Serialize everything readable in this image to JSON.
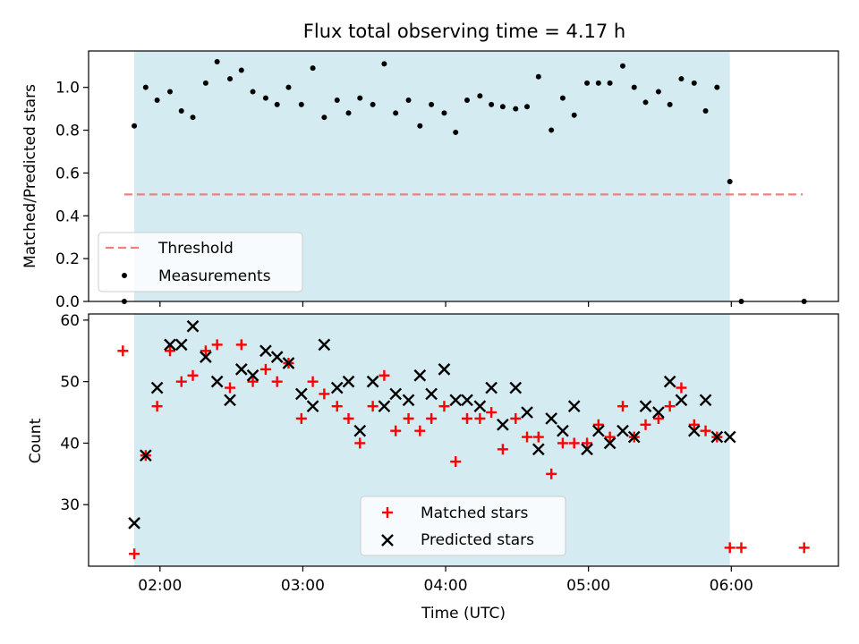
{
  "colors": {
    "shade": "#add8e6",
    "threshold": "#f08080",
    "measurement": "#000000",
    "matched": "#ff0000",
    "predicted": "#000000"
  },
  "chart_data": [
    {
      "type": "scatter",
      "title": "Flux total observing time = 4.17 h",
      "xlabel": "",
      "ylabel": "Matched/Predicted stars",
      "xlim": [
        1.5,
        6.75
      ],
      "ylim": [
        0,
        1.17
      ],
      "x_ticks": [
        2,
        3,
        4,
        5,
        6
      ],
      "y_ticks": [
        0.0,
        0.2,
        0.4,
        0.6,
        0.8,
        1.0
      ],
      "y_tick_labels": [
        "0.0",
        "0.2",
        "0.4",
        "0.6",
        "0.8",
        "1.0"
      ],
      "shaded_span": [
        1.82,
        5.99
      ],
      "threshold": {
        "name": "Threshold",
        "y": 0.5,
        "x": [
          1.75,
          6.5
        ]
      },
      "legend": {
        "position": "lower-left",
        "entries": [
          "Threshold",
          "Measurements"
        ]
      },
      "series": [
        {
          "name": "Measurements",
          "marker": "dot",
          "x": [
            1.75,
            1.82,
            1.9,
            1.98,
            2.07,
            2.15,
            2.23,
            2.32,
            2.4,
            2.49,
            2.57,
            2.65,
            2.74,
            2.82,
            2.9,
            2.99,
            3.07,
            3.15,
            3.24,
            3.32,
            3.4,
            3.49,
            3.57,
            3.65,
            3.74,
            3.82,
            3.9,
            3.99,
            4.07,
            4.15,
            4.24,
            4.32,
            4.4,
            4.49,
            4.57,
            4.65,
            4.74,
            4.82,
            4.9,
            4.99,
            5.07,
            5.15,
            5.24,
            5.32,
            5.4,
            5.49,
            5.57,
            5.65,
            5.74,
            5.82,
            5.9,
            5.99,
            6.07,
            6.51
          ],
          "y": [
            0.0,
            0.82,
            1.0,
            0.94,
            0.98,
            0.89,
            0.86,
            1.02,
            1.12,
            1.04,
            1.08,
            0.98,
            0.95,
            0.92,
            1.0,
            0.92,
            1.09,
            0.86,
            0.94,
            0.88,
            0.95,
            0.92,
            1.11,
            0.88,
            0.94,
            0.82,
            0.92,
            0.88,
            0.79,
            0.94,
            0.96,
            0.92,
            0.91,
            0.9,
            0.91,
            1.05,
            0.8,
            0.95,
            0.87,
            1.02,
            1.02,
            1.02,
            1.1,
            1.0,
            0.93,
            0.98,
            0.92,
            1.04,
            1.02,
            0.89,
            1.0,
            0.56,
            0.0,
            0.0
          ]
        }
      ]
    },
    {
      "type": "scatter",
      "title": "",
      "xlabel": "Time (UTC)",
      "ylabel": "Count",
      "xlim": [
        1.5,
        6.75
      ],
      "ylim": [
        20,
        61
      ],
      "x_ticks": [
        2,
        3,
        4,
        5,
        6
      ],
      "x_tick_labels": [
        "02:00",
        "03:00",
        "04:00",
        "05:00",
        "06:00"
      ],
      "y_ticks": [
        30,
        40,
        50,
        60
      ],
      "y_tick_labels": [
        "30",
        "40",
        "50",
        "60"
      ],
      "shaded_span": [
        1.82,
        5.99
      ],
      "legend": {
        "position": "lower-center",
        "entries": [
          "Matched stars",
          "Predicted stars"
        ]
      },
      "series": [
        {
          "name": "Matched stars",
          "marker": "plus",
          "x": [
            1.74,
            1.82,
            1.9,
            1.98,
            2.07,
            2.15,
            2.23,
            2.32,
            2.4,
            2.49,
            2.57,
            2.65,
            2.74,
            2.82,
            2.9,
            2.99,
            3.07,
            3.15,
            3.24,
            3.32,
            3.4,
            3.49,
            3.57,
            3.65,
            3.74,
            3.82,
            3.9,
            3.99,
            4.07,
            4.15,
            4.24,
            4.32,
            4.4,
            4.49,
            4.57,
            4.65,
            4.74,
            4.82,
            4.9,
            4.99,
            5.07,
            5.15,
            5.24,
            5.32,
            5.4,
            5.49,
            5.57,
            5.65,
            5.74,
            5.82,
            5.9,
            5.99,
            6.07,
            6.51
          ],
          "y": [
            55,
            22,
            38,
            46,
            55,
            50,
            51,
            55,
            56,
            49,
            56,
            50,
            52,
            50,
            53,
            44,
            50,
            48,
            46,
            44,
            40,
            46,
            51,
            42,
            44,
            42,
            44,
            46,
            37,
            44,
            44,
            45,
            39,
            44,
            41,
            41,
            35,
            40,
            40,
            40,
            43,
            41,
            46,
            41,
            43,
            44,
            46,
            49,
            43,
            42,
            41,
            23,
            23,
            23
          ]
        },
        {
          "name": "Predicted stars",
          "marker": "x",
          "x": [
            1.82,
            1.9,
            1.98,
            2.07,
            2.15,
            2.23,
            2.32,
            2.4,
            2.49,
            2.57,
            2.65,
            2.74,
            2.82,
            2.9,
            2.99,
            3.07,
            3.15,
            3.24,
            3.32,
            3.4,
            3.49,
            3.57,
            3.65,
            3.74,
            3.82,
            3.9,
            3.99,
            4.07,
            4.15,
            4.24,
            4.32,
            4.4,
            4.49,
            4.57,
            4.65,
            4.74,
            4.82,
            4.9,
            4.99,
            5.07,
            5.15,
            5.24,
            5.32,
            5.4,
            5.49,
            5.57,
            5.65,
            5.74,
            5.82,
            5.9,
            5.99
          ],
          "y": [
            27,
            38,
            49,
            56,
            56,
            59,
            54,
            50,
            47,
            52,
            51,
            55,
            54,
            53,
            48,
            46,
            56,
            49,
            50,
            42,
            50,
            46,
            48,
            47,
            51,
            48,
            52,
            47,
            47,
            46,
            49,
            43,
            49,
            45,
            39,
            44,
            42,
            46,
            39,
            42,
            40,
            42,
            41,
            46,
            45,
            50,
            47,
            42,
            47,
            41,
            41
          ]
        }
      ]
    }
  ]
}
